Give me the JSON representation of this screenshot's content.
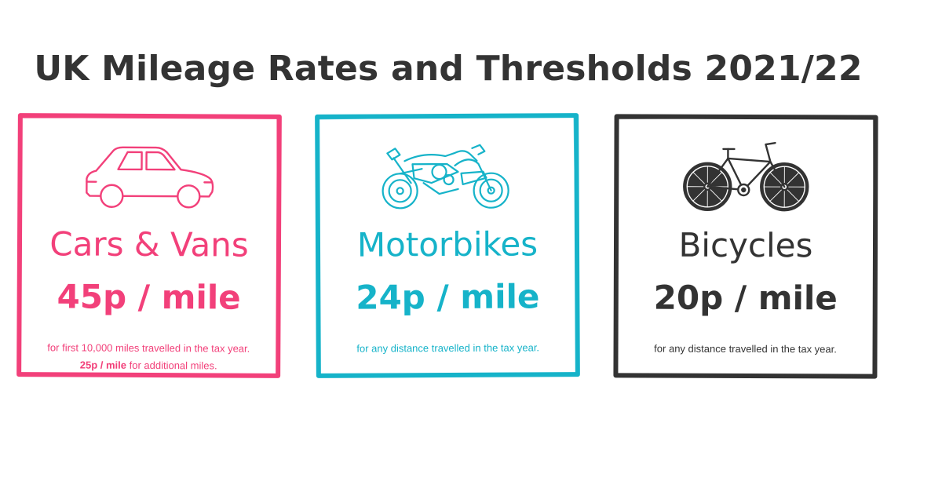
{
  "title": "UK Mileage Rates and Thresholds 2021/22",
  "colors": {
    "cars": "#f2407a",
    "motorbikes": "#16b3c9",
    "bicycles": "#333333"
  },
  "cards": [
    {
      "name": "Cars & Vans",
      "rate": "45p / mile",
      "note_line1": "for first 10,000 miles travelled in the tax year.",
      "note_line2_bold": "25p / mile",
      "note_line2_rest": " for additional miles.",
      "icon": "car-icon"
    },
    {
      "name": "Motorbikes",
      "rate": "24p / mile",
      "note_line1": "for any distance travelled in the tax year.",
      "icon": "motorbike-icon"
    },
    {
      "name": "Bicycles",
      "rate": "20p / mile",
      "note_line1": "for any distance travelled in the tax year.",
      "icon": "bicycle-icon"
    }
  ]
}
